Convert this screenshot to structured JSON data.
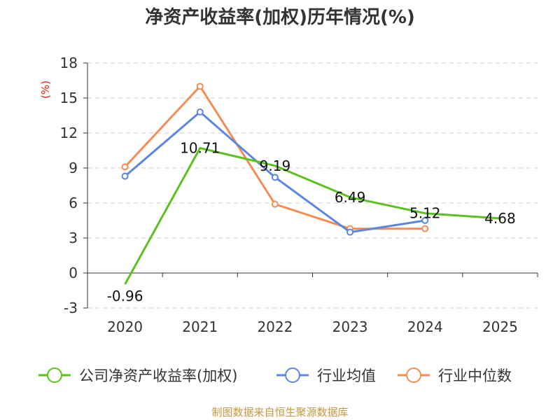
{
  "chart_data": {
    "type": "line",
    "title": "净资产收益率(加权)历年情况(%)",
    "ylabel": "(%)",
    "xlabel": "",
    "categories": [
      "2020",
      "2021",
      "2022",
      "2023",
      "2024",
      "2025"
    ],
    "ylim": [
      -3,
      18
    ],
    "yticks": [
      -3,
      0,
      3,
      6,
      9,
      12,
      15,
      18
    ],
    "grid": true,
    "legend_position": "bottom",
    "series": [
      {
        "name": "公司净资产收益率(加权)",
        "color": "#5ac21a",
        "values": [
          -0.96,
          10.71,
          9.19,
          6.49,
          5.12,
          4.68
        ],
        "labels": [
          "-0.96",
          "10.71",
          "9.19",
          "6.49",
          "5.12",
          "4.68"
        ],
        "show_markers": false
      },
      {
        "name": "行业均值",
        "color": "#5b87e0",
        "values": [
          8.3,
          13.8,
          8.2,
          3.5,
          4.5,
          null
        ],
        "show_markers": true
      },
      {
        "name": "行业中位数",
        "color": "#f58c55",
        "values": [
          9.1,
          16.0,
          5.9,
          3.8,
          3.8,
          null
        ],
        "show_markers": true
      }
    ],
    "source": "制图数据来自恒生聚源数据库"
  }
}
